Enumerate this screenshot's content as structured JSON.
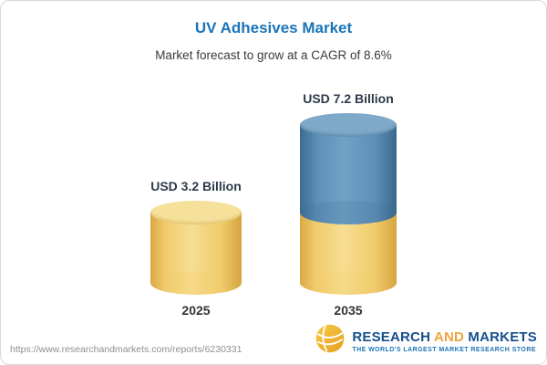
{
  "header": {
    "title": "UV Adhesives Market",
    "subtitle": "Market forecast to grow at a CAGR of 8.6%"
  },
  "chart_data": {
    "type": "bar",
    "variant": "3d-stacked-cylinder",
    "title": "UV Adhesives Market",
    "subtitle": "Market forecast to grow at a CAGR of 8.6%",
    "cagr": "8.6%",
    "unit": "USD Billion",
    "categories": [
      "2025",
      "2035"
    ],
    "values": [
      3.2,
      7.2
    ],
    "value_labels": [
      "USD 3.2 Billion",
      "USD 7.2 Billion"
    ],
    "colors": {
      "gold": "#F2D06E",
      "blue": "#4E86B0"
    },
    "stacks": [
      [
        {
          "name": "value-2025",
          "value": 3.2,
          "color_key": "gold"
        }
      ],
      [
        {
          "name": "growth-to-2035",
          "value": 4.0,
          "color_key": "blue"
        },
        {
          "name": "value-2025",
          "value": 3.2,
          "color_key": "gold"
        }
      ]
    ]
  },
  "footer": {
    "url": "https://www.researchandmarkets.com/reports/6230331",
    "logo": {
      "word1": "RESEARCH",
      "word2": "AND",
      "word3": "MARKETS",
      "tagline": "THE WORLD'S LARGEST MARKET RESEARCH STORE"
    }
  }
}
